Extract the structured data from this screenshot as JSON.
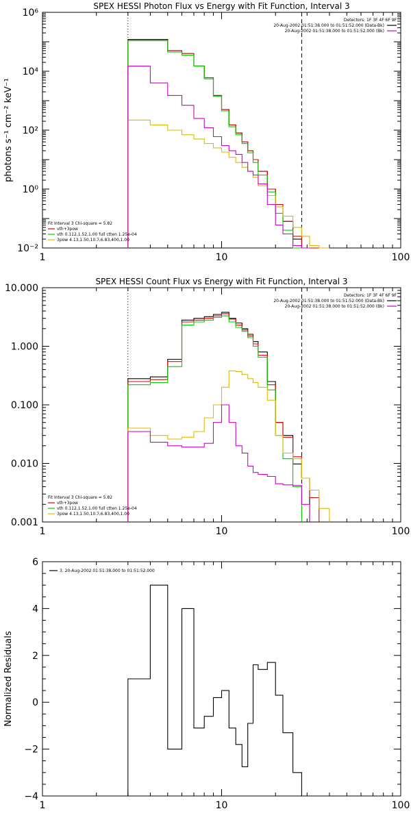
{
  "chart_data": [
    {
      "type": "line",
      "title": "SPEX HESSI Photon Flux vs Energy with Fit Function, Interval 3",
      "xlabel": "",
      "ylabel": "photons s⁻¹ cm⁻² keV⁻¹",
      "xscale": "log",
      "yscale": "log",
      "xlim": [
        1,
        100
      ],
      "ylim": [
        0.01,
        1000000
      ],
      "xticks": [
        1,
        10,
        100
      ],
      "xtick_labels": [
        "1",
        "10",
        "100"
      ],
      "yticks": [
        0.01,
        1,
        100,
        10000,
        1000000
      ],
      "ytick_labels": [
        "10⁻²",
        "10⁰",
        "10²",
        "10⁴",
        "10⁶"
      ],
      "vlines": [
        {
          "x": 3,
          "style": "dotted"
        },
        {
          "x": 28,
          "style": "dashed"
        }
      ],
      "legend_top": [
        {
          "text": "Detectors: 1F 3F 4F 6F 9F",
          "color": "#000000",
          "swatch": false
        },
        {
          "text": "20-Aug-2002 01:51:38.000 to 01:51:52.000 (Data-Bk)",
          "color": "#000000",
          "swatch": true
        },
        {
          "text": "20-Aug-2002 01:51:38.000 to 01:51:52.000 (Bk)",
          "color": "#cc00cc",
          "swatch": true
        }
      ],
      "legend_bottom": [
        {
          "text": "Fit Interval 3   Chi-square = 5.82",
          "color": "#000000",
          "swatch": false
        },
        {
          "text": "vth+3pow",
          "color": "#e00000",
          "swatch": true
        },
        {
          "text": "vth 0.112,1.52,1.00  full ctten 1.25e-04",
          "color": "#00cc00",
          "swatch": true
        },
        {
          "text": "3pow 4.13,1.50,10.7,6.83,400,1.00",
          "color": "#ddbb00",
          "swatch": true
        }
      ],
      "edges": [
        3,
        4,
        5,
        6,
        7,
        8,
        9,
        10,
        11,
        12,
        13,
        14,
        15,
        16,
        18,
        20,
        22,
        25,
        28,
        31,
        35,
        40
      ],
      "series": [
        {
          "color": "#000000",
          "values": [
            120000,
            120000,
            50000,
            40000,
            15000,
            6000,
            1500,
            500,
            150,
            80,
            40,
            20,
            10,
            4,
            1,
            0.3,
            0.08,
            0.02,
            0.008,
            null,
            null
          ]
        },
        {
          "color": "#e00000",
          "values": [
            110000,
            110000,
            50000,
            40000,
            15000,
            6000,
            1500,
            500,
            150,
            80,
            40,
            20,
            10,
            4,
            1,
            0.3,
            0.08,
            0.025,
            0.01,
            0.006,
            null
          ]
        },
        {
          "color": "#00cc00",
          "values": [
            110000,
            110000,
            45000,
            35000,
            15000,
            5500,
            1400,
            450,
            130,
            70,
            35,
            17,
            8,
            3,
            0.8,
            0.15,
            0.04,
            0.008,
            null,
            null,
            null
          ]
        },
        {
          "color": "#ddbb00",
          "values": [
            220,
            150,
            100,
            70,
            50,
            35,
            25,
            18,
            12,
            8,
            5.5,
            4,
            2.5,
            1.3,
            0.6,
            0.25,
            0.12,
            0.05,
            0.025,
            0.012,
            0.006
          ]
        },
        {
          "color": "#cc00cc",
          "values": [
            15000,
            4000,
            1500,
            700,
            250,
            120,
            60,
            30,
            20,
            15,
            8,
            4,
            3,
            1.5,
            0.3,
            0.06,
            0.03,
            0.012,
            0.003,
            null,
            null
          ]
        }
      ]
    },
    {
      "type": "line",
      "title": "SPEX HESSI Count Flux vs Energy with Fit Function, Interval 3",
      "xlabel": "",
      "ylabel": "",
      "xscale": "log",
      "yscale": "log",
      "xlim": [
        1,
        100
      ],
      "ylim": [
        0.001,
        10
      ],
      "xticks": [
        1,
        10,
        100
      ],
      "xtick_labels": [
        "1",
        "10",
        "100"
      ],
      "yticks": [
        0.001,
        0.01,
        0.1,
        1,
        10
      ],
      "ytick_labels": [
        "0.001",
        "0.010",
        "0.100",
        "1.000",
        "10.000"
      ],
      "vlines": [
        {
          "x": 3,
          "style": "dotted"
        },
        {
          "x": 28,
          "style": "dashed"
        }
      ],
      "legend_top": [
        {
          "text": "Detectors: 1F 3F 4F 6F 9F",
          "color": "#000000",
          "swatch": false
        },
        {
          "text": "20-Aug-2002 01:51:38.000 to 01:51:52.000 (Data-Bk)",
          "color": "#000000",
          "swatch": true
        },
        {
          "text": "20-Aug-2002 01:51:38.000 to 01:51:52.000 (Bk)",
          "color": "#cc00cc",
          "swatch": true
        }
      ],
      "legend_bottom": [
        {
          "text": "Fit Interval 3   Chi-square = 5.82",
          "color": "#000000",
          "swatch": false
        },
        {
          "text": "vth+3pow",
          "color": "#e00000",
          "swatch": true
        },
        {
          "text": "vth 0.112,1.52,1.00  full ctten 1.25e-04",
          "color": "#00cc00",
          "swatch": true
        },
        {
          "text": "3pow 4.13,1.50,10.7,6.83,400,1.00",
          "color": "#ddbb00",
          "swatch": true
        }
      ],
      "edges": [
        3,
        4,
        5,
        6,
        7,
        8,
        9,
        10,
        11,
        12,
        13,
        14,
        15,
        16,
        18,
        20,
        22,
        25,
        28,
        31,
        35,
        40
      ],
      "series": [
        {
          "color": "#000000",
          "values": [
            0.28,
            0.3,
            0.6,
            2.8,
            3.0,
            3.2,
            3.5,
            3.8,
            3.0,
            2.5,
            2.0,
            1.6,
            1.2,
            0.8,
            0.25,
            0.05,
            0.03,
            0.0098,
            0.0056,
            null,
            null
          ]
        },
        {
          "color": "#e00000",
          "values": [
            0.25,
            0.27,
            0.55,
            2.6,
            2.8,
            3.0,
            3.3,
            3.6,
            2.9,
            2.3,
            1.9,
            1.5,
            1.1,
            0.7,
            0.22,
            0.05,
            0.028,
            0.013,
            0.0056,
            0.0026,
            null
          ]
        },
        {
          "color": "#00cc00",
          "values": [
            0.22,
            0.24,
            0.45,
            2.3,
            2.6,
            2.8,
            3.1,
            3.3,
            2.6,
            2.1,
            1.8,
            1.4,
            1.0,
            0.65,
            0.18,
            0.03,
            0.012,
            0.004,
            null,
            null,
            null
          ]
        },
        {
          "color": "#ddbb00",
          "values": [
            0.04,
            0.03,
            0.026,
            0.028,
            0.035,
            0.06,
            0.1,
            0.2,
            0.38,
            0.37,
            0.33,
            0.28,
            0.24,
            0.2,
            0.12,
            0.03,
            0.015,
            0.012,
            0.0056,
            0.0035,
            0.0017
          ]
        },
        {
          "color": "#cc00cc",
          "values": [
            0.035,
            0.023,
            0.02,
            0.019,
            0.019,
            0.022,
            0.05,
            0.1,
            0.05,
            0.02,
            0.015,
            0.009,
            0.007,
            0.0065,
            0.006,
            0.0045,
            0.0043,
            0.0042,
            0.002,
            null,
            null
          ]
        }
      ]
    },
    {
      "type": "line",
      "title": "",
      "xlabel": "",
      "ylabel": "Normalized Residuals",
      "xscale": "log",
      "yscale": "linear",
      "xlim": [
        1,
        100
      ],
      "ylim": [
        -4,
        6
      ],
      "xticks": [
        1,
        10,
        100
      ],
      "xtick_labels": [
        "1",
        "10",
        "100"
      ],
      "yticks": [
        -4,
        -2,
        0,
        2,
        4,
        6
      ],
      "ytick_labels": [
        "−4",
        "−2",
        "0",
        "2",
        "4",
        "6"
      ],
      "vlines": [],
      "legend_top_left": [
        {
          "text": "3. 20-Aug-2002 01:51:38.000 to 01:51:52.000",
          "color": "#000000",
          "swatch": true
        }
      ],
      "edges": [
        3,
        4,
        5,
        6,
        7,
        8,
        9,
        10,
        11,
        12,
        13,
        14,
        15,
        16,
        18,
        20,
        22,
        25,
        28
      ],
      "series": [
        {
          "color": "#000000",
          "values": [
            1.0,
            5.0,
            -2.0,
            4.0,
            -1.1,
            -0.6,
            0.2,
            0.5,
            -1.1,
            -1.8,
            -2.75,
            -0.9,
            1.6,
            1.4,
            1.7,
            0.3,
            -1.3,
            -3.0
          ]
        }
      ]
    }
  ]
}
